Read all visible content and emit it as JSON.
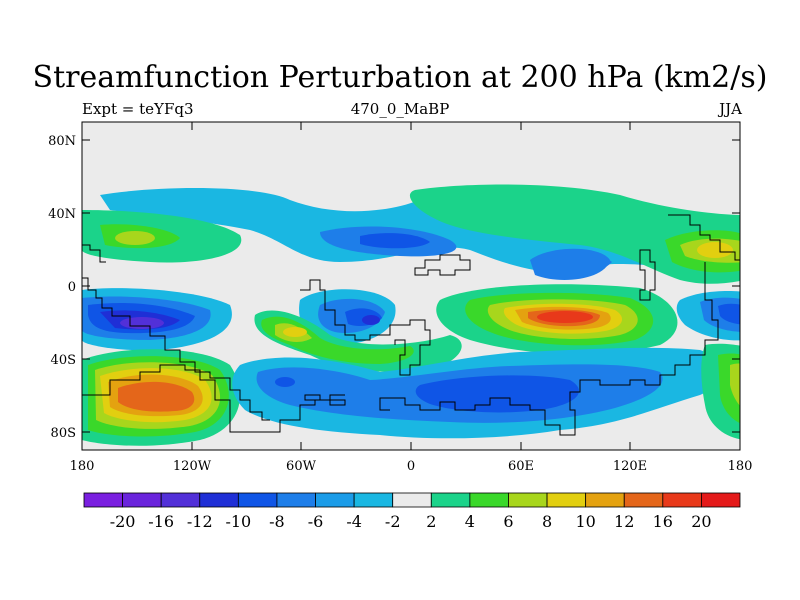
{
  "title": "Streamfunction Perturbation at 200 hPa (km2/s)",
  "left_string": "Expt = teYFq3",
  "center_string": "470_0_MaBP",
  "right_string": "JJA",
  "lat_labels": [
    "80N",
    "40N",
    "0",
    "40S",
    "80S"
  ],
  "lon_labels": [
    "180",
    "120W",
    "60W",
    "0",
    "60E",
    "120E",
    "180"
  ],
  "colorbar": {
    "labels": [
      "-20",
      "-16",
      "-12",
      "-10",
      "-8",
      "-6",
      "-4",
      "-2",
      "2",
      "4",
      "6",
      "8",
      "10",
      "12",
      "16",
      "20"
    ],
    "colors": [
      "#7a1fe0",
      "#6a24dc",
      "#5230d8",
      "#1f2fd6",
      "#0f55e6",
      "#1e7ee9",
      "#1b9ce8",
      "#1ab7e2",
      "#ebebeb",
      "#1bd38a",
      "#3ad82a",
      "#a8d61c",
      "#e2cf10",
      "#e4a210",
      "#e4661a",
      "#e8391a",
      "#e41a1a"
    ]
  },
  "colors": {
    "background": "#ffffff",
    "no_data": "#ebebeb",
    "frame": "#000000"
  }
}
